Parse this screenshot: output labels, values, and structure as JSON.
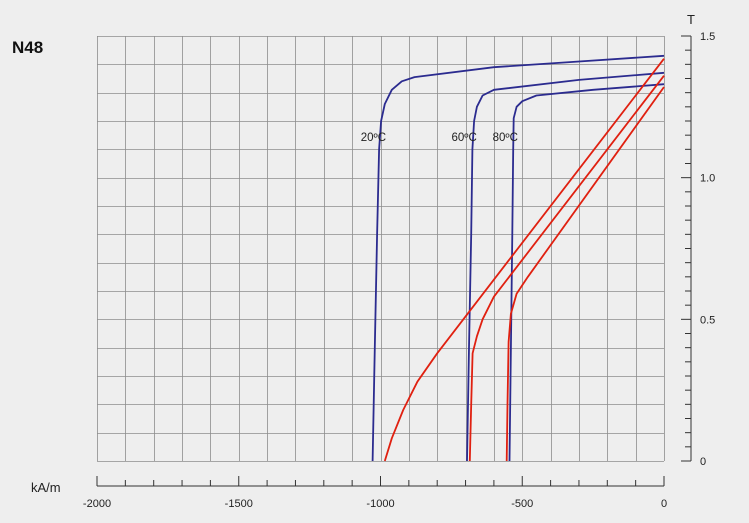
{
  "chart_data": {
    "type": "line",
    "title": "N48",
    "x_unit": "kA/m",
    "y_unit": "T",
    "xlim": [
      -2000,
      0
    ],
    "ylim": [
      0,
      1.5
    ],
    "x_ticks": [
      -2000,
      -1500,
      -1000,
      -500,
      0
    ],
    "x_tick_labels": [
      "-2000",
      "-1500",
      "-1000",
      "-500",
      "0"
    ],
    "y_ticks": [
      0,
      0.5,
      1.0,
      1.5
    ],
    "y_tick_labels": [
      "0",
      "0.5",
      "1.0",
      "1.5"
    ],
    "x_grid_step": 100,
    "y_grid_step": 0.1,
    "grid": true,
    "colors": {
      "j_curves": "#2b2b8f",
      "b_curves": "#e02010",
      "grid": "#8c8c8c",
      "background": "#eeeeee"
    },
    "annotations": [
      {
        "text": "20ºC",
        "x": -1025,
        "y": 1.13
      },
      {
        "text": "60ºC",
        "x": -705,
        "y": 1.13
      },
      {
        "text": "80ºC",
        "x": -560,
        "y": 1.13
      }
    ],
    "series": [
      {
        "group": "J",
        "color": "#2b2b8f",
        "temp": "20ºC",
        "points": [
          [
            -1028,
            0
          ],
          [
            -1020,
            0.4
          ],
          [
            -1012,
            0.8
          ],
          [
            -1005,
            1.1
          ],
          [
            -998,
            1.2
          ],
          [
            -985,
            1.26
          ],
          [
            -960,
            1.31
          ],
          [
            -925,
            1.34
          ],
          [
            -880,
            1.355
          ],
          [
            -600,
            1.39
          ],
          [
            -300,
            1.41
          ],
          [
            0,
            1.43
          ]
        ]
      },
      {
        "group": "J",
        "color": "#2b2b8f",
        "temp": "60ºC",
        "points": [
          [
            -695,
            0
          ],
          [
            -688,
            0.4
          ],
          [
            -680,
            0.8
          ],
          [
            -676,
            1.1
          ],
          [
            -670,
            1.2
          ],
          [
            -660,
            1.25
          ],
          [
            -640,
            1.29
          ],
          [
            -600,
            1.31
          ],
          [
            -300,
            1.345
          ],
          [
            0,
            1.37
          ]
        ]
      },
      {
        "group": "J",
        "color": "#2b2b8f",
        "temp": "80ºC",
        "points": [
          [
            -545,
            0
          ],
          [
            -540,
            0.4
          ],
          [
            -535,
            0.8
          ],
          [
            -532,
            1.1
          ],
          [
            -530,
            1.21
          ],
          [
            -520,
            1.25
          ],
          [
            -500,
            1.27
          ],
          [
            -450,
            1.29
          ],
          [
            -250,
            1.31
          ],
          [
            0,
            1.33
          ]
        ]
      },
      {
        "group": "B",
        "color": "#e02010",
        "temp": "20ºC",
        "points": [
          [
            -985,
            0
          ],
          [
            -960,
            0.08
          ],
          [
            -920,
            0.18
          ],
          [
            -870,
            0.28
          ],
          [
            -800,
            0.38
          ],
          [
            0,
            1.42
          ]
        ]
      },
      {
        "group": "B",
        "color": "#e02010",
        "temp": "60ºC",
        "points": [
          [
            -685,
            0
          ],
          [
            -680,
            0.2
          ],
          [
            -675,
            0.38
          ],
          [
            -660,
            0.44
          ],
          [
            -640,
            0.5
          ],
          [
            -600,
            0.58
          ],
          [
            0,
            1.36
          ]
        ]
      },
      {
        "group": "B",
        "color": "#e02010",
        "temp": "80ºC",
        "points": [
          [
            -555,
            0
          ],
          [
            -552,
            0.2
          ],
          [
            -548,
            0.42
          ],
          [
            -540,
            0.52
          ],
          [
            -520,
            0.59
          ],
          [
            -480,
            0.65
          ],
          [
            0,
            1.32
          ]
        ]
      }
    ]
  }
}
